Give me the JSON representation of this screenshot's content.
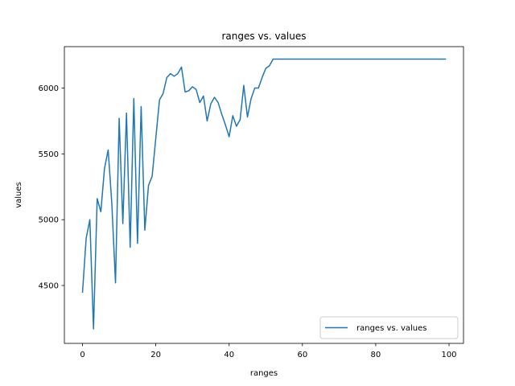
{
  "chart_data": {
    "type": "line",
    "title": "ranges vs. values",
    "xlabel": "ranges",
    "ylabel": "values",
    "xlim": [
      -4.95,
      103.95
    ],
    "ylim": [
      4060,
      6315
    ],
    "xticks": [
      0,
      20,
      40,
      60,
      80,
      100
    ],
    "yticks": [
      4500,
      5000,
      5500,
      6000
    ],
    "grid": false,
    "legend_position": "lower right",
    "series": [
      {
        "name": "ranges vs. values",
        "color": "#1f77b4",
        "x": [
          0,
          1,
          2,
          3,
          4,
          5,
          6,
          7,
          8,
          9,
          10,
          11,
          12,
          13,
          14,
          15,
          16,
          17,
          18,
          19,
          20,
          21,
          22,
          23,
          24,
          25,
          26,
          27,
          28,
          29,
          30,
          31,
          32,
          33,
          34,
          35,
          36,
          37,
          38,
          39,
          40,
          41,
          42,
          43,
          44,
          45,
          46,
          47,
          48,
          49,
          50,
          51,
          52,
          53,
          54,
          55,
          56,
          57,
          58,
          59,
          60,
          61,
          62,
          63,
          64,
          65,
          66,
          67,
          68,
          69,
          70,
          71,
          72,
          73,
          74,
          75,
          76,
          77,
          78,
          79,
          80,
          81,
          82,
          83,
          84,
          85,
          86,
          87,
          88,
          89,
          90,
          91,
          92,
          93,
          94,
          95,
          96,
          97,
          98,
          99
        ],
        "y": [
          4450,
          4860,
          5000,
          4170,
          5160,
          5060,
          5390,
          5530,
          5120,
          4520,
          5770,
          4970,
          5810,
          4790,
          5920,
          4820,
          5860,
          4920,
          5260,
          5330,
          5620,
          5910,
          5960,
          6080,
          6110,
          6090,
          6110,
          6160,
          5970,
          5980,
          6010,
          5990,
          5890,
          5940,
          5750,
          5880,
          5930,
          5890,
          5800,
          5720,
          5630,
          5790,
          5710,
          5760,
          6020,
          5780,
          5920,
          6000,
          6000,
          6080,
          6150,
          6170,
          6220,
          6220,
          6220,
          6220,
          6220,
          6220,
          6220,
          6220,
          6220,
          6220,
          6220,
          6220,
          6220,
          6220,
          6220,
          6220,
          6220,
          6220,
          6220,
          6220,
          6220,
          6220,
          6220,
          6220,
          6220,
          6220,
          6220,
          6220,
          6220,
          6220,
          6220,
          6220,
          6220,
          6220,
          6220,
          6220,
          6220,
          6220,
          6220,
          6220,
          6220,
          6220,
          6220,
          6220,
          6220,
          6220,
          6220,
          6220
        ]
      }
    ]
  }
}
